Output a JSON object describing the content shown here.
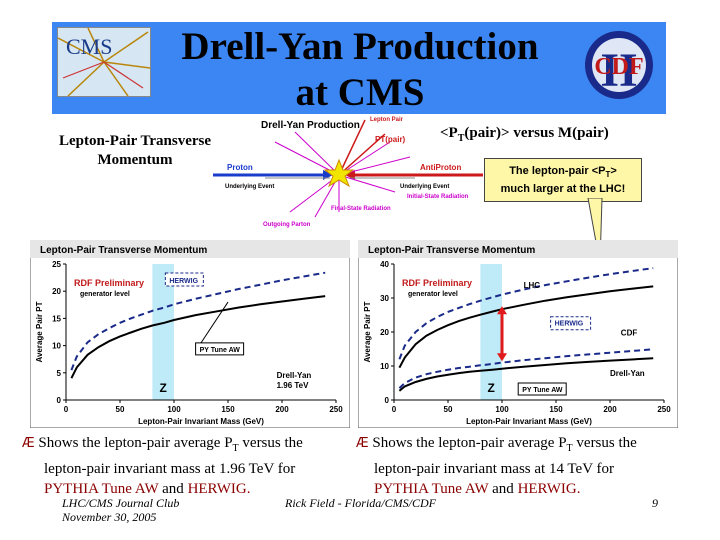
{
  "slide": {
    "title_line1": "Drell-Yan Production",
    "title_line2": "at CMS",
    "cms_logo_text": "CMS",
    "cdf_logo_text": "CDF",
    "cdf_roman": "II",
    "left_heading_line1": "Lepton-Pair Transverse",
    "left_heading_line2": "Momentum",
    "right_heading_pre": "<P",
    "right_heading_sub": "T",
    "right_heading_post": "(pair)> versus M(pair)",
    "callout_line1_pre": "The lepton-pair <P",
    "callout_line1_sub": "T",
    "callout_line1_post": ">",
    "callout_line2": "much larger at the LHC!",
    "footer_left_line1": "LHC/CMS Journal Club",
    "footer_left_line2": "November 30, 2005",
    "footer_center": "Rick Field - Florida/CMS/CDF",
    "page_number": "9"
  },
  "diagram": {
    "title": "Drell-Yan Production",
    "lepton_pair": "Lepton Pair",
    "pt_pair": "PT(pair)",
    "proton": "Proton",
    "antiproton": "AntiProton",
    "underlying_left": "Underlying Event",
    "underlying_right": "Underlying Event",
    "initial_state": "Initial-State Radiation",
    "final_state": "Final-State Radiation",
    "outgoing": "Outgoing Parton",
    "colors": {
      "proton": "#1a3ccc",
      "antiproton": "#cc1a1a",
      "radiation": "#cc00cc",
      "lepton": "#cc1a1a",
      "vertex": "#f2e600"
    }
  },
  "bullets": {
    "left": {
      "symbol": "Æ",
      "line1_pre": "Shows the lepton-pair average P",
      "line1_sub": "T",
      "line1_post": " versus the",
      "line2": "lepton-pair invariant mass at 1.96 TeV for",
      "tune": "PYTHIA Tune AW",
      "and": "and",
      "herwig": "HERWIG."
    },
    "right": {
      "symbol": "Æ",
      "line1_pre": "Shows the lepton-pair average P",
      "line1_sub": "T",
      "line1_post": " versus the",
      "line2": "lepton-pair invariant mass at 14 TeV for",
      "tune": "PYTHIA Tune AW",
      "and": "and",
      "herwig": "HERWIG."
    }
  },
  "chart_data": [
    {
      "type": "line",
      "title": "Lepton-Pair Transverse Momentum",
      "xlabel": "Lepton-Pair Invariant Mass (GeV)",
      "ylabel": "Average Pair PT",
      "xlim": [
        0,
        250
      ],
      "ylim": [
        0,
        25
      ],
      "x_ticks": [
        "0",
        "50",
        "100",
        "150",
        "200",
        "250"
      ],
      "y_ticks": [
        "0",
        "5",
        "10",
        "15",
        "20",
        "25"
      ],
      "grid": false,
      "annotations": {
        "preliminary": "RDF Preliminary",
        "generator": "generator level",
        "herwig_label": "HERWIG",
        "pytune_label": "PY Tune AW",
        "z_label": "Z",
        "process_line1": "Drell-Yan",
        "process_line2": "1.96 TeV"
      },
      "z_band": [
        80,
        100
      ],
      "series": [
        {
          "name": "HERWIG",
          "style": "dashed",
          "color": "#1a2a8a",
          "x": [
            5,
            10,
            20,
            30,
            40,
            50,
            60,
            70,
            80,
            91,
            100,
            120,
            140,
            160,
            180,
            200,
            220,
            240
          ],
          "y": [
            5.5,
            8.0,
            10.6,
            12.1,
            13.2,
            14.2,
            15.0,
            15.7,
            16.4,
            17.0,
            17.6,
            18.6,
            19.5,
            20.4,
            21.2,
            22.0,
            22.7,
            23.4
          ]
        },
        {
          "name": "PY Tune AW",
          "style": "solid",
          "color": "#000000",
          "x": [
            5,
            10,
            20,
            30,
            40,
            50,
            60,
            70,
            80,
            91,
            100,
            120,
            140,
            160,
            180,
            200,
            220,
            240
          ],
          "y": [
            4.0,
            6.0,
            8.3,
            9.7,
            10.8,
            11.7,
            12.4,
            13.1,
            13.7,
            14.2,
            14.7,
            15.6,
            16.3,
            17.0,
            17.6,
            18.1,
            18.6,
            19.1
          ]
        }
      ]
    },
    {
      "type": "line",
      "title": "Lepton-Pair Transverse Momentum",
      "xlabel": "Lepton-Pair Invariant Mass (GeV)",
      "ylabel": "Average Pair PT",
      "xlim": [
        0,
        250
      ],
      "ylim": [
        0,
        40
      ],
      "x_ticks": [
        "0",
        "50",
        "100",
        "150",
        "200",
        "250"
      ],
      "y_ticks": [
        "0",
        "10",
        "20",
        "30",
        "40"
      ],
      "grid": false,
      "annotations": {
        "preliminary": "RDF Preliminary",
        "generator": "generator level",
        "lhc_label": "LHC",
        "herwig_label": "HERWIG",
        "cdf_label": "CDF",
        "pytune_label": "PY Tune AW",
        "process_label": "Drell-Yan",
        "z_label": "Z"
      },
      "z_band": [
        80,
        100
      ],
      "series": [
        {
          "name": "LHC HERWIG",
          "style": "dashed",
          "color": "#1a2a8a",
          "x": [
            5,
            10,
            20,
            30,
            40,
            50,
            60,
            70,
            80,
            91,
            100,
            120,
            140,
            160,
            180,
            200,
            220,
            240
          ],
          "y": [
            12.0,
            16.0,
            20.0,
            22.6,
            24.4,
            25.9,
            27.1,
            28.2,
            29.2,
            30.2,
            31.0,
            32.5,
            33.8,
            34.9,
            36.0,
            37.0,
            37.9,
            38.8
          ]
        },
        {
          "name": "LHC PY Tune AW",
          "style": "solid",
          "color": "#000000",
          "x": [
            5,
            10,
            20,
            30,
            40,
            50,
            60,
            70,
            80,
            91,
            100,
            120,
            140,
            160,
            180,
            200,
            220,
            240
          ],
          "y": [
            9.5,
            12.5,
            16.4,
            18.9,
            20.6,
            22.0,
            23.2,
            24.2,
            25.1,
            26.0,
            26.7,
            28.0,
            29.2,
            30.2,
            31.1,
            32.0,
            32.7,
            33.4
          ]
        },
        {
          "name": "CDF HERWIG",
          "style": "dashed",
          "color": "#1a2a8a",
          "x": [
            5,
            10,
            20,
            30,
            40,
            50,
            60,
            70,
            80,
            91,
            100,
            120,
            140,
            160,
            180,
            200,
            220,
            240
          ],
          "y": [
            3.5,
            5.0,
            6.6,
            7.6,
            8.3,
            8.9,
            9.4,
            9.8,
            10.2,
            10.6,
            11.0,
            11.7,
            12.3,
            12.9,
            13.4,
            13.9,
            14.4,
            14.9
          ]
        },
        {
          "name": "CDF PY Tune AW",
          "style": "solid",
          "color": "#000000",
          "x": [
            5,
            10,
            20,
            30,
            40,
            50,
            60,
            70,
            80,
            91,
            100,
            120,
            140,
            160,
            180,
            200,
            220,
            240
          ],
          "y": [
            2.7,
            4.0,
            5.3,
            6.2,
            6.9,
            7.4,
            7.9,
            8.3,
            8.6,
            8.9,
            9.2,
            9.8,
            10.3,
            10.8,
            11.2,
            11.6,
            11.9,
            12.3
          ]
        }
      ]
    }
  ]
}
